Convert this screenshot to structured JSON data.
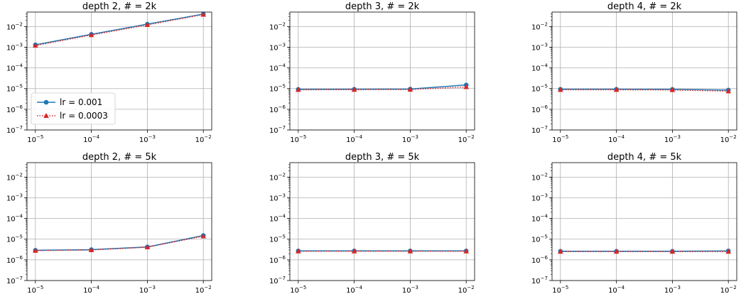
{
  "figure": {
    "colors": {
      "lr_0.001": "#1f77b4",
      "lr_0.0003": "#d62728",
      "grid": "#b0b0b0",
      "axes": "#000000"
    }
  },
  "chart_data": [
    {
      "type": "line",
      "title": "depth 2, # = 2k",
      "xscale": "log",
      "yscale": "log",
      "xlim": [
        1e-05,
        0.01
      ],
      "ylim": [
        1e-07,
        0.05
      ],
      "xticks": [
        1e-05,
        0.0001,
        0.001,
        0.01
      ],
      "yticks": [
        1e-07,
        1e-06,
        1e-05,
        0.0001,
        0.001,
        0.01
      ],
      "grid": true,
      "legend": {
        "placement": "lower-left",
        "entries": [
          "lr = 0.001",
          "lr = 0.0003"
        ]
      },
      "x": [
        1e-05,
        0.0001,
        0.001,
        0.01
      ],
      "series": [
        {
          "name": "lr = 0.001",
          "values": [
            0.0013,
            0.0042,
            0.013,
            0.04
          ]
        },
        {
          "name": "lr = 0.0003",
          "values": [
            0.0012,
            0.0039,
            0.012,
            0.038
          ]
        }
      ]
    },
    {
      "type": "line",
      "title": "depth 3, # = 2k",
      "xscale": "log",
      "yscale": "log",
      "xlim": [
        1e-05,
        0.01
      ],
      "ylim": [
        1e-07,
        0.05
      ],
      "xticks": [
        1e-05,
        0.0001,
        0.001,
        0.01
      ],
      "yticks": [
        1e-07,
        1e-06,
        1e-05,
        0.0001,
        0.001,
        0.01
      ],
      "grid": true,
      "x": [
        1e-05,
        0.0001,
        0.001,
        0.01
      ],
      "series": [
        {
          "name": "lr = 0.001",
          "values": [
            9.2e-06,
            9.3e-06,
            9.5e-06,
            1.5e-05
          ]
        },
        {
          "name": "lr = 0.0003",
          "values": [
            8.8e-06,
            8.9e-06,
            9e-06,
            1.2e-05
          ]
        }
      ]
    },
    {
      "type": "line",
      "title": "depth 4, # = 2k",
      "xscale": "log",
      "yscale": "log",
      "xlim": [
        1e-05,
        0.01
      ],
      "ylim": [
        1e-07,
        0.05
      ],
      "xticks": [
        1e-05,
        0.0001,
        0.001,
        0.01
      ],
      "yticks": [
        1e-07,
        1e-06,
        1e-05,
        0.0001,
        0.001,
        0.01
      ],
      "grid": true,
      "x": [
        1e-05,
        0.0001,
        0.001,
        0.01
      ],
      "series": [
        {
          "name": "lr = 0.001",
          "values": [
            9.3e-06,
            9.3e-06,
            9.2e-06,
            8.5e-06
          ]
        },
        {
          "name": "lr = 0.0003",
          "values": [
            8.8e-06,
            8.8e-06,
            8.6e-06,
            7.5e-06
          ]
        }
      ]
    },
    {
      "type": "line",
      "title": "depth 2, # = 5k",
      "xscale": "log",
      "yscale": "log",
      "xlim": [
        1e-05,
        0.01
      ],
      "ylim": [
        1e-07,
        0.05
      ],
      "xticks": [
        1e-05,
        0.0001,
        0.001,
        0.01
      ],
      "yticks": [
        1e-07,
        1e-06,
        1e-05,
        0.0001,
        0.001,
        0.01
      ],
      "grid": true,
      "x": [
        1e-05,
        0.0001,
        0.001,
        0.01
      ],
      "series": [
        {
          "name": "lr = 0.001",
          "values": [
            2.9e-06,
            3.1e-06,
            4.2e-06,
            1.5e-05
          ]
        },
        {
          "name": "lr = 0.0003",
          "values": [
            2.8e-06,
            3e-06,
            4.1e-06,
            1.4e-05
          ]
        }
      ]
    },
    {
      "type": "line",
      "title": "depth 3, # = 5k",
      "xscale": "log",
      "yscale": "log",
      "xlim": [
        1e-05,
        0.01
      ],
      "ylim": [
        1e-07,
        0.05
      ],
      "xticks": [
        1e-05,
        0.0001,
        0.001,
        0.01
      ],
      "yticks": [
        1e-07,
        1e-06,
        1e-05,
        0.0001,
        0.001,
        0.01
      ],
      "grid": true,
      "x": [
        1e-05,
        0.0001,
        0.001,
        0.01
      ],
      "series": [
        {
          "name": "lr = 0.001",
          "values": [
            2.7e-06,
            2.7e-06,
            2.7e-06,
            2.7e-06
          ]
        },
        {
          "name": "lr = 0.0003",
          "values": [
            2.6e-06,
            2.6e-06,
            2.6e-06,
            2.6e-06
          ]
        }
      ]
    },
    {
      "type": "line",
      "title": "depth 4, # = 5k",
      "xscale": "log",
      "yscale": "log",
      "xlim": [
        1e-05,
        0.01
      ],
      "ylim": [
        1e-07,
        0.05
      ],
      "xticks": [
        1e-05,
        0.0001,
        0.001,
        0.01
      ],
      "yticks": [
        1e-07,
        1e-06,
        1e-05,
        0.0001,
        0.001,
        0.01
      ],
      "grid": true,
      "x": [
        1e-05,
        0.0001,
        0.001,
        0.01
      ],
      "series": [
        {
          "name": "lr = 0.001",
          "values": [
            2.6e-06,
            2.6e-06,
            2.6e-06,
            2.7e-06
          ]
        },
        {
          "name": "lr = 0.0003",
          "values": [
            2.5e-06,
            2.5e-06,
            2.5e-06,
            2.5e-06
          ]
        }
      ]
    }
  ]
}
